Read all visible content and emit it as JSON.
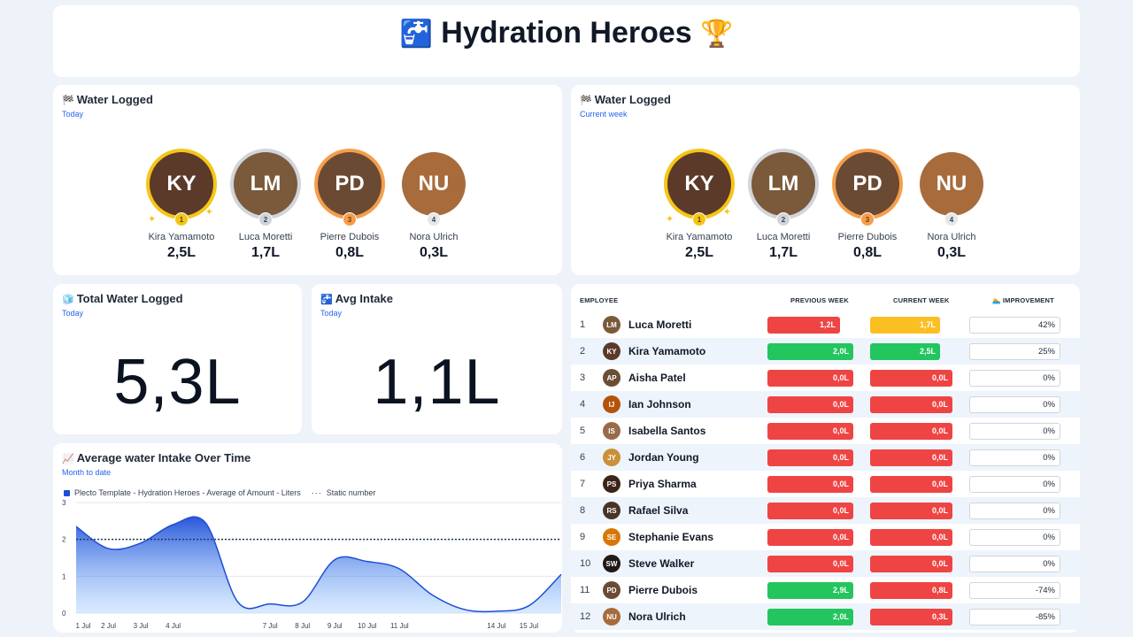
{
  "header": {
    "title": "Hydration Heroes",
    "icon_left": "faucet-icon",
    "icon_right": "trophy-icon"
  },
  "water_today": {
    "title": "Water Logged",
    "subtitle": "Today",
    "icon": "checkered-flag-icon",
    "people": [
      {
        "name": "Kira Yamamoto",
        "value": "2,5L",
        "rank": "1",
        "initials": "KY",
        "color": "#5b3a29"
      },
      {
        "name": "Luca Moretti",
        "value": "1,7L",
        "rank": "2",
        "initials": "LM",
        "color": "#7a5a3a"
      },
      {
        "name": "Pierre Dubois",
        "value": "0,8L",
        "rank": "3",
        "initials": "PD",
        "color": "#6b4a34"
      },
      {
        "name": "Nora Ulrich",
        "value": "0,3L",
        "rank": "4",
        "initials": "NU",
        "color": "#a86b3c"
      }
    ]
  },
  "water_week": {
    "title": "Water Logged",
    "subtitle": "Current week",
    "icon": "checkered-flag-icon",
    "people": [
      {
        "name": "Kira Yamamoto",
        "value": "2,5L",
        "rank": "1",
        "initials": "KY",
        "color": "#5b3a29"
      },
      {
        "name": "Luca Moretti",
        "value": "1,7L",
        "rank": "2",
        "initials": "LM",
        "color": "#7a5a3a"
      },
      {
        "name": "Pierre Dubois",
        "value": "0,8L",
        "rank": "3",
        "initials": "PD",
        "color": "#6b4a34"
      },
      {
        "name": "Nora Ulrich",
        "value": "0,3L",
        "rank": "4",
        "initials": "NU",
        "color": "#a86b3c"
      }
    ]
  },
  "total": {
    "title": "Total Water Logged",
    "subtitle": "Today",
    "value": "5,3L",
    "icon": "ice-cube-icon"
  },
  "avg": {
    "title": "Avg Intake",
    "subtitle": "Today",
    "value": "1,1L",
    "icon": "faucet-icon"
  },
  "chart": {
    "title": "Average water Intake Over Time",
    "subtitle": "Month to date",
    "icon": "chart-increasing-icon",
    "legend_series": "Plecto Template - Hydration Heroes - Average of Amount - Liters",
    "legend_static": "Static number"
  },
  "chart_data": {
    "type": "area",
    "title": "Average water Intake Over Time",
    "x": [
      "1 Jul",
      "2 Jul",
      "3 Jul",
      "4 Jul",
      "5 Jul",
      "6 Jul",
      "7 Jul",
      "8 Jul",
      "9 Jul",
      "10 Jul",
      "11 Jul",
      "12 Jul",
      "13 Jul",
      "14 Jul",
      "15 Jul",
      "16 Jul"
    ],
    "x_tick_labels": [
      "1 Jul",
      "2 Jul",
      "3 Jul",
      "4 Jul",
      "7 Jul",
      "8 Jul",
      "9 Jul",
      "10 Jul",
      "11 Jul",
      "14 Jul",
      "15 Jul"
    ],
    "series": [
      {
        "name": "Plecto Template - Hydration Heroes - Average of Amount - Liters",
        "values": [
          2.35,
          1.75,
          1.9,
          2.4,
          2.45,
          0.3,
          0.25,
          0.3,
          1.45,
          1.4,
          1.2,
          0.5,
          0.1,
          0.05,
          0.2,
          1.05
        ]
      },
      {
        "name": "Static number",
        "values": [
          2,
          2,
          2,
          2,
          2,
          2,
          2,
          2,
          2,
          2,
          2,
          2,
          2,
          2,
          2,
          2
        ]
      }
    ],
    "ylim": [
      0,
      3
    ],
    "yticks": [
      "0",
      "1",
      "2",
      "3"
    ],
    "grid": true,
    "legend": "top-left",
    "colors": {
      "series": "#1d4ed8",
      "static": "#1e3a5f"
    }
  },
  "table": {
    "headers": {
      "employee": "EMPLOYEE",
      "prev": "PREVIOUS WEEK",
      "curr": "CURRENT WEEK",
      "imp": "IMPROVEMENT"
    },
    "imp_icon": "swimmer-icon",
    "colors": {
      "red": "#ef4444",
      "green": "#22c55e",
      "amber": "#fbbf24"
    },
    "rows": [
      {
        "num": "1",
        "name": "Luca Moretti",
        "initials": "LM",
        "avatar": "#7a5a3a",
        "prev": "1,2L",
        "prev_fill": 0.85,
        "prev_color": "red",
        "curr": "1,7L",
        "curr_fill": 0.85,
        "curr_color": "amber",
        "imp": "42%"
      },
      {
        "num": "2",
        "name": "Kira Yamamoto",
        "initials": "KY",
        "avatar": "#5b3a29",
        "prev": "2,0L",
        "prev_fill": 1.0,
        "prev_color": "green",
        "curr": "2,5L",
        "curr_fill": 0.85,
        "curr_color": "green",
        "imp": "25%"
      },
      {
        "num": "3",
        "name": "Aisha Patel",
        "initials": "AP",
        "avatar": "#6b4e36",
        "prev": "0,0L",
        "prev_fill": 1.0,
        "prev_color": "red",
        "curr": "0,0L",
        "curr_fill": 1.0,
        "curr_color": "red",
        "imp": "0%"
      },
      {
        "num": "4",
        "name": "Ian Johnson",
        "initials": "IJ",
        "avatar": "#b45309",
        "prev": "0,0L",
        "prev_fill": 1.0,
        "prev_color": "red",
        "curr": "0,0L",
        "curr_fill": 1.0,
        "curr_color": "red",
        "imp": "0%"
      },
      {
        "num": "5",
        "name": "Isabella Santos",
        "initials": "IS",
        "avatar": "#9a6b4a",
        "prev": "0,0L",
        "prev_fill": 1.0,
        "prev_color": "red",
        "curr": "0,0L",
        "curr_fill": 1.0,
        "curr_color": "red",
        "imp": "0%"
      },
      {
        "num": "6",
        "name": "Jordan Young",
        "initials": "JY",
        "avatar": "#c8913a",
        "prev": "0,0L",
        "prev_fill": 1.0,
        "prev_color": "red",
        "curr": "0,0L",
        "curr_fill": 1.0,
        "curr_color": "red",
        "imp": "0%"
      },
      {
        "num": "7",
        "name": "Priya Sharma",
        "initials": "PS",
        "avatar": "#3b2418",
        "prev": "0,0L",
        "prev_fill": 1.0,
        "prev_color": "red",
        "curr": "0,0L",
        "curr_fill": 1.0,
        "curr_color": "red",
        "imp": "0%"
      },
      {
        "num": "8",
        "name": "Rafael Silva",
        "initials": "RS",
        "avatar": "#4a3426",
        "prev": "0,0L",
        "prev_fill": 1.0,
        "prev_color": "red",
        "curr": "0,0L",
        "curr_fill": 1.0,
        "curr_color": "red",
        "imp": "0%"
      },
      {
        "num": "9",
        "name": "Stephanie Evans",
        "initials": "SE",
        "avatar": "#d97706",
        "prev": "0,0L",
        "prev_fill": 1.0,
        "prev_color": "red",
        "curr": "0,0L",
        "curr_fill": 1.0,
        "curr_color": "red",
        "imp": "0%"
      },
      {
        "num": "10",
        "name": "Steve Walker",
        "initials": "SW",
        "avatar": "#1f1a17",
        "prev": "0,0L",
        "prev_fill": 1.0,
        "prev_color": "red",
        "curr": "0,0L",
        "curr_fill": 1.0,
        "curr_color": "red",
        "imp": "0%"
      },
      {
        "num": "11",
        "name": "Pierre Dubois",
        "initials": "PD",
        "avatar": "#6b4a34",
        "prev": "2,9L",
        "prev_fill": 1.0,
        "prev_color": "green",
        "curr": "0,8L",
        "curr_fill": 1.0,
        "curr_color": "red",
        "imp": "-74%"
      },
      {
        "num": "12",
        "name": "Nora Ulrich",
        "initials": "NU",
        "avatar": "#a86b3c",
        "prev": "2,0L",
        "prev_fill": 1.0,
        "prev_color": "green",
        "curr": "0,3L",
        "curr_fill": 1.0,
        "curr_color": "red",
        "imp": "-85%"
      }
    ]
  }
}
